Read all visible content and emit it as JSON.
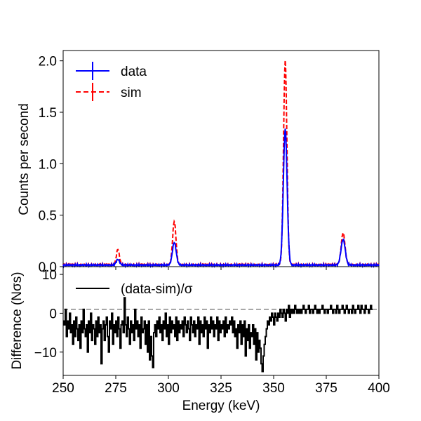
{
  "chart_data": [
    {
      "type": "line",
      "panel": "top",
      "title": "",
      "xlabel": "",
      "ylabel": "Counts per second",
      "xlim": [
        250,
        400
      ],
      "ylim": [
        0,
        2.1
      ],
      "xticks": [
        250,
        275,
        300,
        325,
        350,
        375,
        400
      ],
      "yticks": [
        0.0,
        0.5,
        1.0,
        1.5,
        2.0
      ],
      "ytick_labels": [
        "0.0",
        "0.5",
        "1.0",
        "1.5",
        "2.0"
      ],
      "legend_position": "top-left",
      "series": [
        {
          "name": "data",
          "color": "#0000ff",
          "style": "solid",
          "baseline": 0.015,
          "peaks": [
            {
              "center": 276.0,
              "amplitude": 0.055,
              "width": 0.8
            },
            {
              "center": 302.8,
              "amplitude": 0.22,
              "width": 0.9
            },
            {
              "center": 355.5,
              "amplitude": 1.32,
              "width": 0.9
            },
            {
              "center": 383.0,
              "amplitude": 0.25,
              "width": 1.0
            }
          ]
        },
        {
          "name": "sim",
          "color": "#ff0000",
          "style": "dashed",
          "baseline": 0.02,
          "peaks": [
            {
              "center": 276.0,
              "amplitude": 0.15,
              "width": 0.7
            },
            {
              "center": 302.8,
              "amplitude": 0.42,
              "width": 0.8
            },
            {
              "center": 355.5,
              "amplitude": 1.98,
              "width": 0.8
            },
            {
              "center": 383.0,
              "amplitude": 0.31,
              "width": 0.9
            }
          ]
        }
      ]
    },
    {
      "type": "line",
      "panel": "bottom",
      "title": "",
      "xlabel": "Energy (keV)",
      "ylabel": "Difference (Nσs)",
      "xlim": [
        250,
        400
      ],
      "ylim": [
        -16,
        12
      ],
      "xticks": [
        250,
        275,
        300,
        325,
        350,
        375,
        400
      ],
      "xtick_labels": [
        "250",
        "275",
        "300",
        "325",
        "350",
        "375",
        "400"
      ],
      "yticks": [
        -10,
        0,
        10
      ],
      "ytick_labels": [
        "−10",
        "0",
        "10"
      ],
      "reference_line": 1,
      "legend_position": "top-left",
      "series": [
        {
          "name": "(data-sim)/σ",
          "color": "#000000",
          "style": "steps",
          "x_start": 250,
          "x_step": 0.5,
          "values": [
            -2,
            -3,
            1,
            -6,
            -2,
            -4,
            0,
            -5,
            -3,
            -8,
            -2,
            -6,
            -1,
            -4,
            -7,
            -3,
            -9,
            -2,
            -5,
            1,
            -4,
            -6,
            -3,
            -10,
            -2,
            -5,
            0,
            -7,
            -3,
            -4,
            -8,
            -2,
            -6,
            -1,
            -5,
            -3,
            -13,
            -4,
            -2,
            -7,
            -3,
            -1,
            -6,
            -10,
            -2,
            -4,
            0,
            -8,
            -3,
            -5,
            -2,
            -6,
            -1,
            -4,
            -9,
            -3,
            -2,
            -5,
            4,
            -3,
            -6,
            -1,
            -4,
            -8,
            -2,
            -5,
            -3,
            -7,
            1,
            -4,
            -2,
            -6,
            -3,
            -9,
            -1,
            -5,
            -4,
            -2,
            -8,
            -3,
            -10,
            -2,
            -12,
            -6,
            -11,
            -14,
            -5,
            -3,
            -6,
            -2,
            -4,
            -1,
            -5,
            -3,
            -7,
            -2,
            -4,
            0,
            -6,
            -3,
            -8,
            -1,
            -5,
            -2,
            -4,
            -3,
            -6,
            -1,
            -7,
            -2,
            -5,
            -3,
            -4,
            -2,
            -6,
            -1,
            -3,
            -5,
            -2,
            -4,
            -7,
            -1,
            -3,
            -5,
            -2,
            -6,
            -3,
            -4,
            -1,
            -8,
            -2,
            -5,
            -3,
            -6,
            -1,
            -4,
            -2,
            -9,
            -3,
            -5,
            -1,
            -4,
            -2,
            -6,
            -3,
            -4,
            -1,
            -7,
            -2,
            -5,
            -3,
            -4,
            -2,
            -6,
            -1,
            -5,
            -3,
            -4,
            -2,
            -3,
            -1,
            -5,
            -2,
            -6,
            -4,
            -9,
            -3,
            -5,
            -2,
            -8,
            -3,
            -6,
            -2,
            -11,
            -4,
            -7,
            -3,
            -9,
            -5,
            -6,
            -3,
            -8,
            -4,
            -12,
            -5,
            -10,
            -7,
            -9,
            -13,
            -15,
            -11,
            -8,
            -6,
            -4,
            -2,
            -3,
            -1,
            -2,
            0,
            -1,
            -3,
            0,
            -1,
            -2,
            0,
            -1,
            1,
            0,
            -1,
            1,
            0,
            -2,
            1,
            0,
            2,
            -1,
            1,
            0,
            1,
            0,
            2,
            1,
            0,
            1,
            0,
            1,
            0,
            1,
            2,
            1,
            0,
            1,
            1,
            2,
            0,
            1,
            1,
            0,
            1,
            2,
            1,
            0,
            1,
            0,
            1,
            1,
            2,
            1,
            0,
            1,
            1,
            0,
            1,
            1,
            2,
            1,
            0,
            1,
            1,
            0,
            2,
            1,
            0,
            1,
            1,
            2,
            1,
            0,
            1,
            2,
            1,
            0,
            1,
            1,
            0,
            2,
            1,
            0,
            1,
            1,
            2,
            1,
            0,
            2,
            1,
            1,
            0,
            2,
            1,
            1,
            0,
            1,
            2,
            1
          ]
        }
      ]
    }
  ],
  "legend_symbols": {
    "sigma_italic": "σ"
  }
}
